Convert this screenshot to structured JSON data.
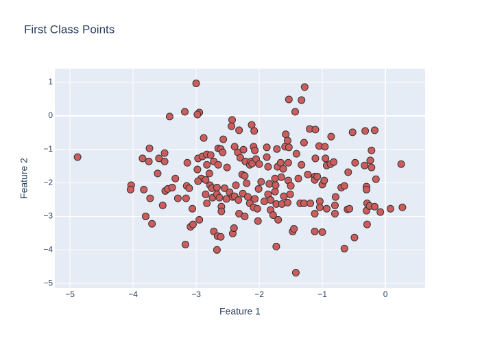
{
  "chart_data": {
    "type": "scatter",
    "title": "First Class Points",
    "xlabel": "Feature 1",
    "ylabel": "Feature 2",
    "color": "#cd5c5c",
    "edgecolor": "#333333",
    "grid": true,
    "xlim": [
      -5.24,
      0.63
    ],
    "ylim": [
      -5.14,
      1.41
    ],
    "xticks": [
      {
        "value": -5,
        "label": "−5"
      },
      {
        "value": -4,
        "label": "−4"
      },
      {
        "value": -3,
        "label": "−3"
      },
      {
        "value": -2,
        "label": "−2"
      },
      {
        "value": -1,
        "label": "−1"
      },
      0
    ],
    "yticks": [
      {
        "value": -5,
        "label": "−5"
      },
      {
        "value": -4,
        "label": "−4"
      },
      {
        "value": -3,
        "label": "−3"
      },
      {
        "value": -2,
        "label": "−2"
      },
      {
        "value": -1,
        "label": "−1"
      },
      0,
      1
    ],
    "x": [
      -4.88,
      -4.03,
      -4.04,
      -3.83,
      -3.85,
      -3.74,
      -3.75,
      -3.73,
      -3.8,
      -3.7,
      -3.59,
      -3.5,
      -3.5,
      -3.61,
      -3.42,
      -3.49,
      -3.45,
      -3.53,
      -3.38,
      -3.33,
      -3.29,
      -3.18,
      -3.14,
      -3.15,
      -3.11,
      -3.16,
      -3.06,
      -3.09,
      -3.05,
      -3.17,
      -3.0,
      -2.95,
      -2.98,
      -2.88,
      -2.97,
      -2.9,
      -2.83,
      -2.98,
      -2.92,
      -2.97,
      -2.85,
      -2.79,
      -2.83,
      -2.85,
      -2.95,
      -2.77,
      -2.72,
      -2.78,
      -2.75,
      -2.74,
      -2.83,
      -2.72,
      -2.66,
      -2.67,
      -2.61,
      -2.65,
      -2.61,
      -2.58,
      -2.65,
      -2.67,
      -2.67,
      -2.63,
      -2.6,
      -2.6,
      -2.57,
      -2.51,
      -2.55,
      -2.47,
      -2.52,
      -2.42,
      -2.43,
      -2.44,
      -2.42,
      -2.4,
      -2.39,
      -2.37,
      -2.39,
      -2.32,
      -2.34,
      -2.3,
      -2.27,
      -2.33,
      -2.32,
      -2.25,
      -2.22,
      -2.23,
      -2.2,
      -2.26,
      -2.23,
      -2.15,
      -2.18,
      -2.12,
      -2.08,
      -2.13,
      -2.11,
      -2.09,
      -2.07,
      -2.05,
      -2.15,
      -2.09,
      -2.03,
      -2.02,
      -2.07,
      -2.01,
      -2.0,
      -1.97,
      -1.92,
      -1.88,
      -1.88,
      -1.86,
      -1.84,
      -1.86,
      -1.82,
      -1.82,
      -1.75,
      -1.78,
      -1.75,
      -1.73,
      -1.72,
      -1.74,
      -1.71,
      -1.73,
      -1.7,
      -1.66,
      -1.65,
      -1.62,
      -1.64,
      -1.61,
      -1.59,
      -1.58,
      -1.55,
      -1.54,
      -1.54,
      -1.53,
      -1.53,
      -1.5,
      -1.55,
      -1.51,
      -1.47,
      -1.45,
      -1.43,
      -1.42,
      -1.41,
      -1.38,
      -1.35,
      -1.33,
      -1.33,
      -1.29,
      -1.29,
      -1.28,
      -1.23,
      -1.19,
      -1.2,
      -1.12,
      -1.11,
      -1.11,
      -1.12,
      -1.08,
      -1.12,
      -1.12,
      -1.05,
      -1.04,
      -1.0,
      -1.04,
      -1.0,
      -0.97,
      -0.96,
      -0.95,
      -0.93,
      -0.93,
      -0.87,
      -0.86,
      -0.82,
      -0.79,
      -0.8,
      -0.8,
      -0.7,
      -0.65,
      -0.65,
      -0.59,
      -0.6,
      -0.57,
      -0.52,
      -0.48,
      -0.49,
      -0.32,
      -0.33,
      -0.3,
      -0.3,
      -0.29,
      -0.3,
      -0.29,
      -0.25,
      -0.24,
      -0.22,
      -0.22,
      -0.17,
      -0.15,
      -0.17,
      -0.08,
      0.08,
      0.25,
      0.27
    ],
    "y": [
      -1.23,
      -2.07,
      -2.2,
      -2.2,
      -1.27,
      -0.97,
      -1.36,
      -2.46,
      -3.0,
      -3.22,
      -1.27,
      -1.11,
      -1.36,
      -1.72,
      -0.02,
      -2.24,
      -2.18,
      -2.67,
      -2.14,
      -1.87,
      -2.46,
      0.12,
      -1.4,
      -2.09,
      -2.16,
      -2.46,
      -2.77,
      -3.31,
      -3.24,
      -3.84,
      0.97,
      0.1,
      0.04,
      -0.66,
      -1.27,
      -1.21,
      -1.15,
      -1.6,
      -1.87,
      -1.95,
      -1.91,
      -1.72,
      -1.46,
      -2.34,
      -3.1,
      -1.17,
      -1.36,
      -2.07,
      -2.16,
      -2.44,
      -2.61,
      -3.45,
      -3.59,
      -4.0,
      -3.61,
      -0.97,
      -0.99,
      -1.09,
      -1.46,
      -2.14,
      -2.34,
      -2.44,
      -2.71,
      -2.85,
      -0.7,
      -1.54,
      -2.16,
      -2.28,
      -2.48,
      -2.42,
      -0.12,
      -0.31,
      -3.51,
      -3.35,
      -0.92,
      -2.07,
      -2.4,
      -0.43,
      -1.09,
      -1.25,
      -1.75,
      -2.51,
      -2.92,
      -1.01,
      -1.36,
      -1.79,
      -2.01,
      -2.32,
      -3.0,
      -1.46,
      -2.42,
      -0.27,
      -0.45,
      -1.36,
      -1.42,
      -0.92,
      -1.03,
      -1.29,
      -2.61,
      -2.73,
      -2.77,
      -3.14,
      -2.48,
      -2.18,
      -1.44,
      -1.97,
      -2.55,
      -0.94,
      -1.23,
      -1.52,
      -2.03,
      -2.34,
      -2.81,
      -2.51,
      -1.87,
      -2.96,
      -2.26,
      -3.9,
      -0.99,
      -2.07,
      -1.52,
      -2.63,
      -3.1,
      -1.4,
      -1.83,
      -1.58,
      -2.63,
      -2.4,
      -0.92,
      -0.55,
      -0.74,
      -1.4,
      -1.93,
      0.49,
      -0.94,
      -2.09,
      -2.59,
      -2.34,
      -3.45,
      -3.37,
      0.12,
      -4.68,
      -1.13,
      -1.87,
      -2.61,
      -1.46,
      0.47,
      -0.8,
      -2.61,
      0.86,
      -1.75,
      -2.61,
      -0.39,
      -1.81,
      -0.41,
      -1.27,
      -1.91,
      -1.81,
      -2.92,
      -3.45,
      -0.9,
      -2.55,
      -2.05,
      -2.73,
      -3.47,
      -1.93,
      -0.92,
      -1.27,
      -1.48,
      -2.77,
      -1.44,
      -0.62,
      -1.38,
      -2.42,
      -2.67,
      -2.92,
      -2.14,
      -2.09,
      -3.96,
      -1.68,
      -2.79,
      -2.77,
      -0.49,
      -1.4,
      -3.63,
      -0.45,
      -1.48,
      -2.11,
      -2.2,
      -2.61,
      -2.83,
      -3.24,
      -2.69,
      -1.33,
      -1.54,
      -1.03,
      -0.43,
      -1.89,
      -2.71,
      -2.87,
      -2.77,
      -1.44,
      -2.73
    ]
  }
}
